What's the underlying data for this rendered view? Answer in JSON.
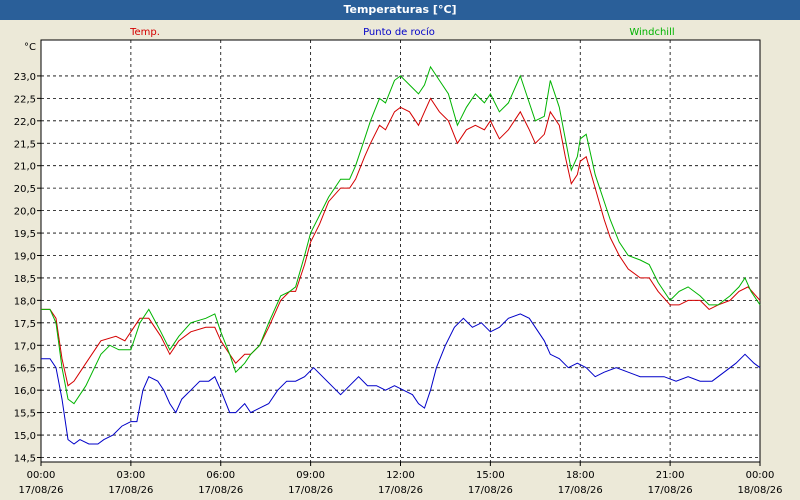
{
  "window": {
    "title": "Temperaturas [°C]"
  },
  "colors": {
    "temp": "#d40000",
    "dew": "#0000c8",
    "windchill": "#00b400",
    "titlebar": "#2a5f99"
  },
  "chart_data": {
    "type": "line",
    "title": "Temperaturas [°C]",
    "ylabel": "°C",
    "ylim": [
      14.4,
      23.8
    ],
    "yticks": [
      "23,0",
      "22,5",
      "22,0",
      "21,5",
      "21,0",
      "20,5",
      "20,0",
      "19,5",
      "19,0",
      "18,5",
      "18,0",
      "17,5",
      "17,0",
      "16,5",
      "16,0",
      "15,5",
      "15,0",
      "14,5"
    ],
    "ytick_values": [
      23.0,
      22.5,
      22.0,
      21.5,
      21.0,
      20.5,
      20.0,
      19.5,
      19.0,
      18.5,
      18.0,
      17.5,
      17.0,
      16.5,
      16.0,
      15.5,
      15.0,
      14.5
    ],
    "xticks": [
      {
        "time": "00:00",
        "date": "17/08/26"
      },
      {
        "time": "03:00",
        "date": "17/08/26"
      },
      {
        "time": "06:00",
        "date": "17/08/26"
      },
      {
        "time": "09:00",
        "date": "17/08/26"
      },
      {
        "time": "12:00",
        "date": "17/08/26"
      },
      {
        "time": "15:00",
        "date": "17/08/26"
      },
      {
        "time": "18:00",
        "date": "17/08/26"
      },
      {
        "time": "21:00",
        "date": "17/08/26"
      },
      {
        "time": "00:00",
        "date": "18/08/26"
      }
    ],
    "x_range_hours": [
      0,
      24
    ],
    "grid": true,
    "series": [
      {
        "name": "Temp.",
        "color": "#d40000",
        "points": [
          [
            0.0,
            17.8
          ],
          [
            0.3,
            17.8
          ],
          [
            0.5,
            17.6
          ],
          [
            0.7,
            16.7
          ],
          [
            0.9,
            16.1
          ],
          [
            1.1,
            16.2
          ],
          [
            1.5,
            16.6
          ],
          [
            2.0,
            17.1
          ],
          [
            2.5,
            17.2
          ],
          [
            2.8,
            17.1
          ],
          [
            3.0,
            17.3
          ],
          [
            3.3,
            17.6
          ],
          [
            3.6,
            17.6
          ],
          [
            4.0,
            17.2
          ],
          [
            4.3,
            16.8
          ],
          [
            4.6,
            17.1
          ],
          [
            5.0,
            17.3
          ],
          [
            5.5,
            17.4
          ],
          [
            5.8,
            17.4
          ],
          [
            6.0,
            17.1
          ],
          [
            6.3,
            16.8
          ],
          [
            6.5,
            16.6
          ],
          [
            6.8,
            16.8
          ],
          [
            7.0,
            16.8
          ],
          [
            7.3,
            17.0
          ],
          [
            7.6,
            17.4
          ],
          [
            8.0,
            18.0
          ],
          [
            8.3,
            18.2
          ],
          [
            8.5,
            18.2
          ],
          [
            8.8,
            18.8
          ],
          [
            9.0,
            19.3
          ],
          [
            9.3,
            19.7
          ],
          [
            9.6,
            20.2
          ],
          [
            10.0,
            20.5
          ],
          [
            10.3,
            20.5
          ],
          [
            10.5,
            20.7
          ],
          [
            10.8,
            21.2
          ],
          [
            11.0,
            21.5
          ],
          [
            11.3,
            21.9
          ],
          [
            11.5,
            21.8
          ],
          [
            11.8,
            22.2
          ],
          [
            12.0,
            22.3
          ],
          [
            12.3,
            22.2
          ],
          [
            12.6,
            21.9
          ],
          [
            12.8,
            22.2
          ],
          [
            13.0,
            22.5
          ],
          [
            13.3,
            22.2
          ],
          [
            13.6,
            22.0
          ],
          [
            13.9,
            21.5
          ],
          [
            14.2,
            21.8
          ],
          [
            14.5,
            21.9
          ],
          [
            14.8,
            21.8
          ],
          [
            15.0,
            22.0
          ],
          [
            15.3,
            21.6
          ],
          [
            15.6,
            21.8
          ],
          [
            16.0,
            22.2
          ],
          [
            16.3,
            21.8
          ],
          [
            16.5,
            21.5
          ],
          [
            16.8,
            21.7
          ],
          [
            17.0,
            22.2
          ],
          [
            17.3,
            21.9
          ],
          [
            17.5,
            21.2
          ],
          [
            17.7,
            20.6
          ],
          [
            17.9,
            20.8
          ],
          [
            18.0,
            21.1
          ],
          [
            18.2,
            21.2
          ],
          [
            18.5,
            20.5
          ],
          [
            18.8,
            19.8
          ],
          [
            19.0,
            19.4
          ],
          [
            19.3,
            19.0
          ],
          [
            19.6,
            18.7
          ],
          [
            20.0,
            18.5
          ],
          [
            20.3,
            18.5
          ],
          [
            20.6,
            18.2
          ],
          [
            21.0,
            17.9
          ],
          [
            21.3,
            17.9
          ],
          [
            21.6,
            18.0
          ],
          [
            22.0,
            18.0
          ],
          [
            22.3,
            17.8
          ],
          [
            22.6,
            17.9
          ],
          [
            23.0,
            18.0
          ],
          [
            23.3,
            18.2
          ],
          [
            23.6,
            18.3
          ],
          [
            24.0,
            18.0
          ]
        ]
      },
      {
        "name": "Punto de rocío",
        "color": "#0000c8",
        "points": [
          [
            0.0,
            16.7
          ],
          [
            0.3,
            16.7
          ],
          [
            0.5,
            16.5
          ],
          [
            0.7,
            15.8
          ],
          [
            0.9,
            14.9
          ],
          [
            1.1,
            14.8
          ],
          [
            1.3,
            14.9
          ],
          [
            1.6,
            14.8
          ],
          [
            1.9,
            14.8
          ],
          [
            2.1,
            14.9
          ],
          [
            2.4,
            15.0
          ],
          [
            2.7,
            15.2
          ],
          [
            3.0,
            15.3
          ],
          [
            3.2,
            15.3
          ],
          [
            3.4,
            16.0
          ],
          [
            3.6,
            16.3
          ],
          [
            3.9,
            16.2
          ],
          [
            4.1,
            16.0
          ],
          [
            4.3,
            15.7
          ],
          [
            4.5,
            15.5
          ],
          [
            4.7,
            15.8
          ],
          [
            5.0,
            16.0
          ],
          [
            5.3,
            16.2
          ],
          [
            5.6,
            16.2
          ],
          [
            5.8,
            16.3
          ],
          [
            6.0,
            16.0
          ],
          [
            6.3,
            15.5
          ],
          [
            6.5,
            15.5
          ],
          [
            6.8,
            15.7
          ],
          [
            7.0,
            15.5
          ],
          [
            7.3,
            15.6
          ],
          [
            7.6,
            15.7
          ],
          [
            7.9,
            16.0
          ],
          [
            8.2,
            16.2
          ],
          [
            8.5,
            16.2
          ],
          [
            8.8,
            16.3
          ],
          [
            9.1,
            16.5
          ],
          [
            9.4,
            16.3
          ],
          [
            9.7,
            16.1
          ],
          [
            10.0,
            15.9
          ],
          [
            10.3,
            16.1
          ],
          [
            10.6,
            16.3
          ],
          [
            10.9,
            16.1
          ],
          [
            11.2,
            16.1
          ],
          [
            11.5,
            16.0
          ],
          [
            11.8,
            16.1
          ],
          [
            12.1,
            16.0
          ],
          [
            12.4,
            15.9
          ],
          [
            12.6,
            15.7
          ],
          [
            12.8,
            15.6
          ],
          [
            13.0,
            16.0
          ],
          [
            13.2,
            16.5
          ],
          [
            13.5,
            17.0
          ],
          [
            13.8,
            17.4
          ],
          [
            14.1,
            17.6
          ],
          [
            14.4,
            17.4
          ],
          [
            14.7,
            17.5
          ],
          [
            15.0,
            17.3
          ],
          [
            15.3,
            17.4
          ],
          [
            15.6,
            17.6
          ],
          [
            16.0,
            17.7
          ],
          [
            16.3,
            17.6
          ],
          [
            16.5,
            17.4
          ],
          [
            16.8,
            17.1
          ],
          [
            17.0,
            16.8
          ],
          [
            17.3,
            16.7
          ],
          [
            17.6,
            16.5
          ],
          [
            17.9,
            16.6
          ],
          [
            18.2,
            16.5
          ],
          [
            18.5,
            16.3
          ],
          [
            18.8,
            16.4
          ],
          [
            19.2,
            16.5
          ],
          [
            19.6,
            16.4
          ],
          [
            20.0,
            16.3
          ],
          [
            20.4,
            16.3
          ],
          [
            20.8,
            16.3
          ],
          [
            21.2,
            16.2
          ],
          [
            21.6,
            16.3
          ],
          [
            22.0,
            16.2
          ],
          [
            22.4,
            16.2
          ],
          [
            22.8,
            16.4
          ],
          [
            23.2,
            16.6
          ],
          [
            23.5,
            16.8
          ],
          [
            23.8,
            16.6
          ],
          [
            24.0,
            16.5
          ]
        ]
      },
      {
        "name": "Windchill",
        "color": "#00b400",
        "points": [
          [
            0.0,
            17.8
          ],
          [
            0.3,
            17.8
          ],
          [
            0.5,
            17.5
          ],
          [
            0.7,
            16.5
          ],
          [
            0.9,
            15.8
          ],
          [
            1.1,
            15.7
          ],
          [
            1.5,
            16.1
          ],
          [
            2.0,
            16.8
          ],
          [
            2.3,
            17.0
          ],
          [
            2.6,
            16.9
          ],
          [
            3.0,
            16.9
          ],
          [
            3.3,
            17.5
          ],
          [
            3.6,
            17.8
          ],
          [
            4.0,
            17.3
          ],
          [
            4.3,
            16.9
          ],
          [
            4.6,
            17.2
          ],
          [
            5.0,
            17.5
          ],
          [
            5.5,
            17.6
          ],
          [
            5.8,
            17.7
          ],
          [
            6.0,
            17.3
          ],
          [
            6.3,
            16.8
          ],
          [
            6.5,
            16.4
          ],
          [
            6.8,
            16.6
          ],
          [
            7.0,
            16.8
          ],
          [
            7.3,
            17.0
          ],
          [
            7.6,
            17.5
          ],
          [
            8.0,
            18.1
          ],
          [
            8.3,
            18.2
          ],
          [
            8.5,
            18.3
          ],
          [
            8.8,
            19.0
          ],
          [
            9.0,
            19.5
          ],
          [
            9.3,
            19.9
          ],
          [
            9.6,
            20.3
          ],
          [
            10.0,
            20.7
          ],
          [
            10.3,
            20.7
          ],
          [
            10.5,
            21.0
          ],
          [
            10.8,
            21.6
          ],
          [
            11.0,
            22.0
          ],
          [
            11.3,
            22.5
          ],
          [
            11.5,
            22.4
          ],
          [
            11.8,
            22.9
          ],
          [
            12.0,
            23.0
          ],
          [
            12.3,
            22.8
          ],
          [
            12.6,
            22.6
          ],
          [
            12.8,
            22.8
          ],
          [
            13.0,
            23.2
          ],
          [
            13.3,
            22.9
          ],
          [
            13.6,
            22.6
          ],
          [
            13.9,
            21.9
          ],
          [
            14.2,
            22.3
          ],
          [
            14.5,
            22.6
          ],
          [
            14.8,
            22.4
          ],
          [
            15.0,
            22.6
          ],
          [
            15.3,
            22.2
          ],
          [
            15.6,
            22.4
          ],
          [
            16.0,
            23.0
          ],
          [
            16.3,
            22.4
          ],
          [
            16.5,
            22.0
          ],
          [
            16.8,
            22.1
          ],
          [
            17.0,
            22.9
          ],
          [
            17.3,
            22.3
          ],
          [
            17.5,
            21.6
          ],
          [
            17.7,
            20.9
          ],
          [
            17.9,
            21.2
          ],
          [
            18.0,
            21.6
          ],
          [
            18.2,
            21.7
          ],
          [
            18.5,
            20.8
          ],
          [
            18.8,
            20.2
          ],
          [
            19.0,
            19.8
          ],
          [
            19.3,
            19.3
          ],
          [
            19.6,
            19.0
          ],
          [
            20.0,
            18.9
          ],
          [
            20.3,
            18.8
          ],
          [
            20.6,
            18.4
          ],
          [
            21.0,
            18.0
          ],
          [
            21.3,
            18.2
          ],
          [
            21.6,
            18.3
          ],
          [
            22.0,
            18.1
          ],
          [
            22.3,
            17.9
          ],
          [
            22.6,
            17.9
          ],
          [
            23.0,
            18.1
          ],
          [
            23.3,
            18.3
          ],
          [
            23.5,
            18.5
          ],
          [
            23.7,
            18.2
          ],
          [
            24.0,
            17.9
          ]
        ]
      }
    ]
  }
}
